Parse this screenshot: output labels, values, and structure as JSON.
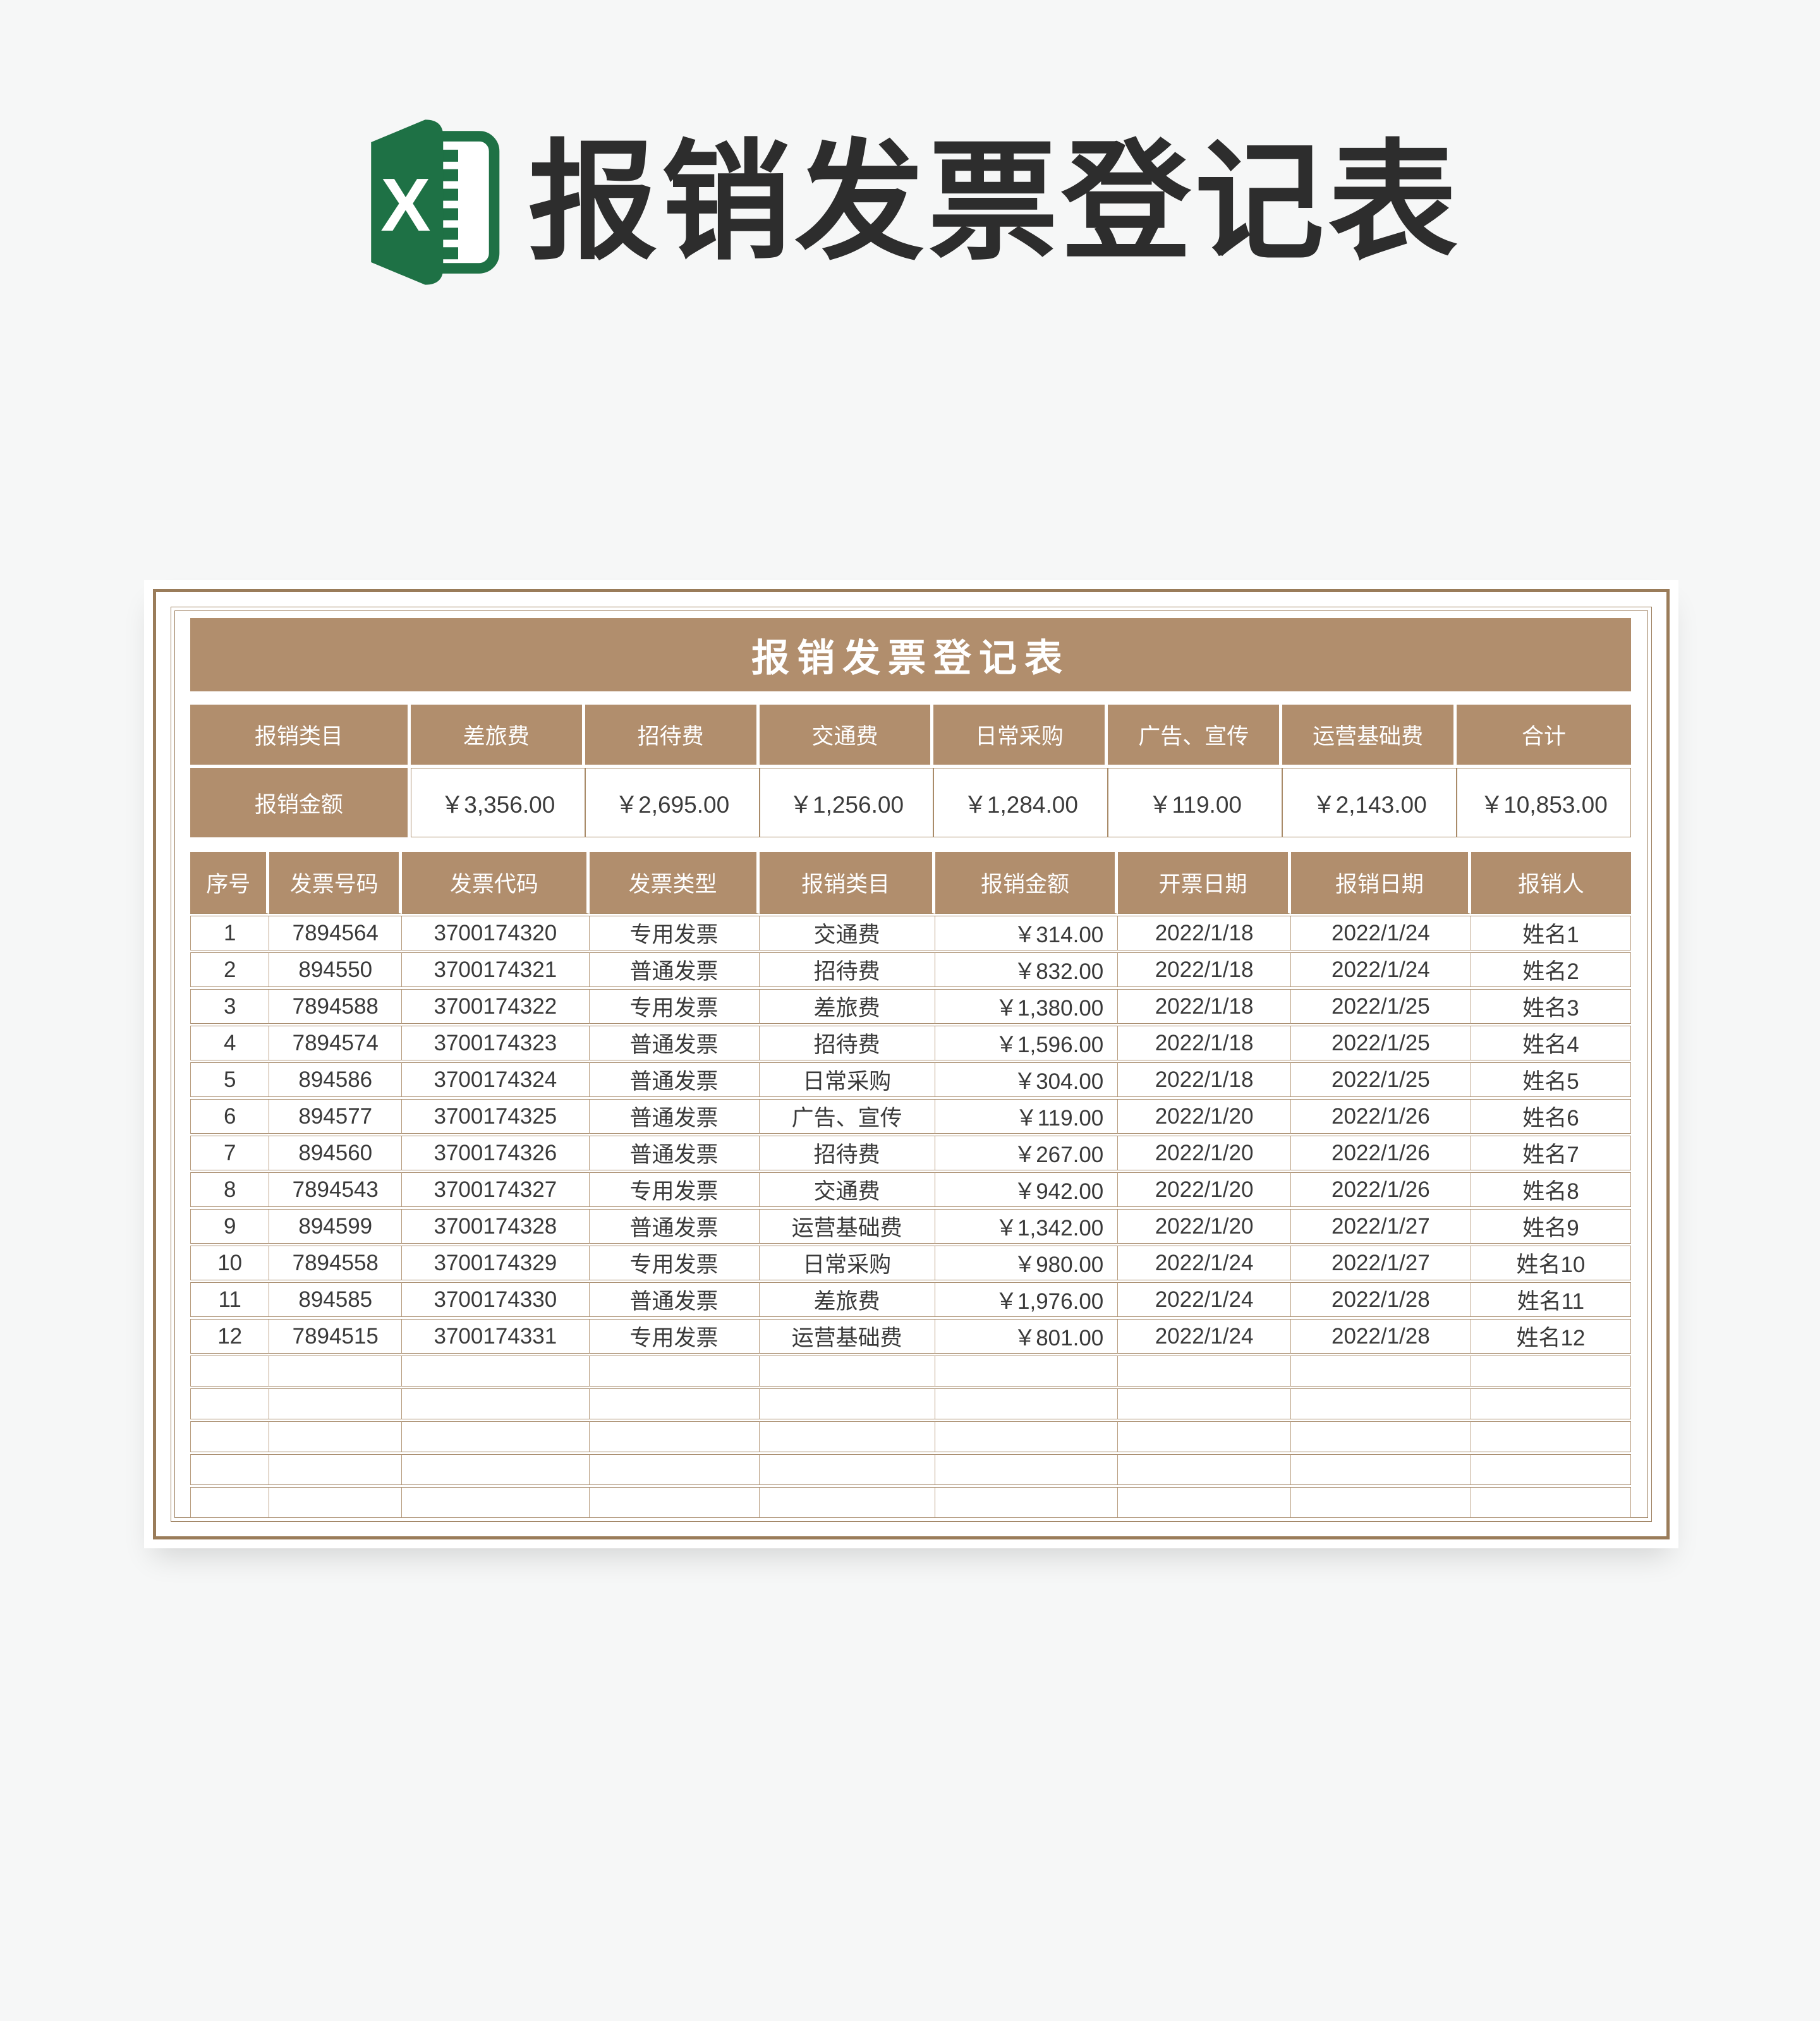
{
  "header": {
    "title": "报销发票登记表",
    "logo_icon": "excel-icon"
  },
  "card": {
    "table_title": "报销发票登记表",
    "summary": {
      "category_label": "报销类目",
      "amount_label": "报销金额",
      "columns": [
        "差旅费",
        "招待费",
        "交通费",
        "日常采购",
        "广告、宣传",
        "运营基础费",
        "合计"
      ],
      "amounts": [
        "￥3,356.00",
        "￥2,695.00",
        "￥1,256.00",
        "￥1,284.00",
        "￥119.00",
        "￥2,143.00",
        "￥10,853.00"
      ]
    },
    "register": {
      "headers": [
        "序号",
        "发票号码",
        "发票代码",
        "发票类型",
        "报销类目",
        "报销金额",
        "开票日期",
        "报销日期",
        "报销人"
      ],
      "rows": [
        [
          "1",
          "7894564",
          "3700174320",
          "专用发票",
          "交通费",
          "￥314.00",
          "2022/1/18",
          "2022/1/24",
          "姓名1"
        ],
        [
          "2",
          "894550",
          "3700174321",
          "普通发票",
          "招待费",
          "￥832.00",
          "2022/1/18",
          "2022/1/24",
          "姓名2"
        ],
        [
          "3",
          "7894588",
          "3700174322",
          "专用发票",
          "差旅费",
          "￥1,380.00",
          "2022/1/18",
          "2022/1/25",
          "姓名3"
        ],
        [
          "4",
          "7894574",
          "3700174323",
          "普通发票",
          "招待费",
          "￥1,596.00",
          "2022/1/18",
          "2022/1/25",
          "姓名4"
        ],
        [
          "5",
          "894586",
          "3700174324",
          "普通发票",
          "日常采购",
          "￥304.00",
          "2022/1/18",
          "2022/1/25",
          "姓名5"
        ],
        [
          "6",
          "894577",
          "3700174325",
          "普通发票",
          "广告、宣传",
          "￥119.00",
          "2022/1/20",
          "2022/1/26",
          "姓名6"
        ],
        [
          "7",
          "894560",
          "3700174326",
          "普通发票",
          "招待费",
          "￥267.00",
          "2022/1/20",
          "2022/1/26",
          "姓名7"
        ],
        [
          "8",
          "7894543",
          "3700174327",
          "专用发票",
          "交通费",
          "￥942.00",
          "2022/1/20",
          "2022/1/26",
          "姓名8"
        ],
        [
          "9",
          "894599",
          "3700174328",
          "普通发票",
          "运营基础费",
          "￥1,342.00",
          "2022/1/20",
          "2022/1/27",
          "姓名9"
        ],
        [
          "10",
          "7894558",
          "3700174329",
          "专用发票",
          "日常采购",
          "￥980.00",
          "2022/1/24",
          "2022/1/27",
          "姓名10"
        ],
        [
          "11",
          "894585",
          "3700174330",
          "普通发票",
          "差旅费",
          "￥1,976.00",
          "2022/1/24",
          "2022/1/28",
          "姓名11"
        ],
        [
          "12",
          "7894515",
          "3700174331",
          "专用发票",
          "运营基础费",
          "￥801.00",
          "2022/1/24",
          "2022/1/28",
          "姓名12"
        ]
      ],
      "empty_row_count": 5,
      "amount_column_index": 5
    }
  },
  "colors": {
    "accent_brown": "#b18e6d",
    "frame_brown": "#9a7c5a",
    "line_brown": "#a98b69",
    "excel_green": "#1e7145",
    "page_background": "#f6f7f7",
    "text_dark": "#2d2d2d"
  }
}
